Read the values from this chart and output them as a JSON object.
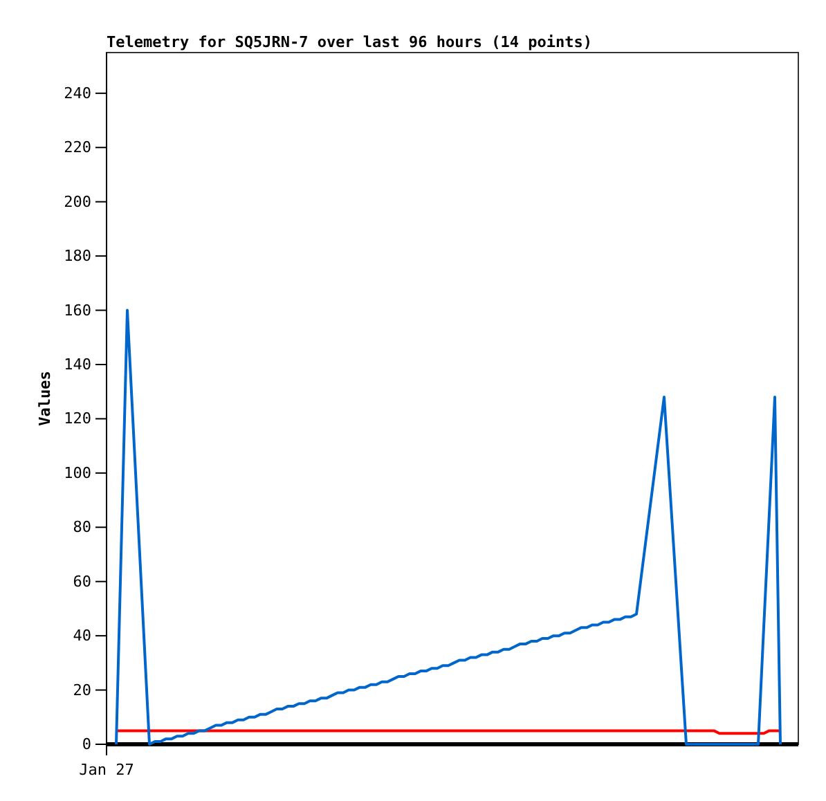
{
  "chart_data": {
    "type": "line",
    "title": "Telemetry for SQ5JRN-7 over last 96 hours (14 points)",
    "ylabel": "Values",
    "annotations": [
      "Jan 27"
    ],
    "categories": [
      null,
      null,
      null,
      null,
      null,
      null,
      null,
      null,
      null,
      null,
      null,
      null,
      null,
      null,
      null,
      null,
      null,
      null,
      null,
      null,
      null,
      null,
      null,
      null,
      null,
      null,
      null,
      null,
      null,
      null,
      null,
      null,
      null,
      null,
      null,
      null,
      null,
      null,
      null,
      null,
      null,
      null,
      null,
      null,
      null,
      null,
      null,
      null,
      null,
      null,
      null,
      null,
      null,
      null,
      null,
      null,
      null,
      null,
      null,
      null,
      null,
      null,
      null,
      null,
      null,
      null,
      null,
      null,
      null,
      null,
      null,
      null,
      null,
      null,
      null,
      null,
      null,
      null,
      null,
      null,
      null,
      null,
      null,
      null,
      null,
      null,
      null,
      null,
      null,
      null,
      null,
      null,
      null,
      null,
      null,
      null,
      null,
      null,
      null,
      null,
      null,
      null,
      null,
      null,
      null,
      null,
      null,
      null,
      null,
      null,
      null,
      null,
      null,
      null,
      null,
      null,
      null,
      null,
      null,
      null,
      null
    ],
    "ylim": [
      0,
      255
    ],
    "yticks": [
      0,
      20,
      40,
      60,
      80,
      100,
      120,
      140,
      160,
      180,
      200,
      220,
      240
    ],
    "grid": false,
    "series": [
      {
        "color": "#ff0000",
        "values": [
          5,
          5,
          5,
          5,
          5,
          5,
          5,
          5,
          5,
          5,
          5,
          5,
          5,
          5,
          5,
          5,
          5,
          5,
          5,
          5,
          5,
          5,
          5,
          5,
          5,
          5,
          5,
          5,
          5,
          5,
          5,
          5,
          5,
          5,
          5,
          5,
          5,
          5,
          5,
          5,
          5,
          5,
          5,
          5,
          5,
          5,
          5,
          5,
          5,
          5,
          5,
          5,
          5,
          5,
          5,
          5,
          5,
          5,
          5,
          5,
          5,
          5,
          5,
          5,
          5,
          5,
          5,
          5,
          5,
          5,
          5,
          5,
          5,
          5,
          5,
          5,
          5,
          5,
          5,
          5,
          5,
          5,
          5,
          5,
          5,
          5,
          5,
          5,
          5,
          5,
          5,
          5,
          5,
          5,
          5,
          5,
          5,
          5,
          5,
          5,
          5,
          5,
          5,
          5,
          5,
          5,
          5,
          5,
          5,
          4,
          4,
          4,
          4,
          4,
          4,
          4,
          4,
          4,
          5,
          5,
          5
        ]
      },
      {
        "color": "#0066cc",
        "values": [
          0,
          80,
          160,
          120,
          80,
          40,
          0,
          1,
          1,
          2,
          2,
          3,
          3,
          4,
          4,
          5,
          5,
          6,
          7,
          7,
          8,
          8,
          9,
          9,
          10,
          10,
          11,
          11,
          12,
          13,
          13,
          14,
          14,
          15,
          15,
          16,
          16,
          17,
          17,
          18,
          19,
          19,
          20,
          20,
          21,
          21,
          22,
          22,
          23,
          23,
          24,
          25,
          25,
          26,
          26,
          27,
          27,
          28,
          28,
          29,
          29,
          30,
          31,
          31,
          32,
          32,
          33,
          33,
          34,
          34,
          35,
          35,
          36,
          37,
          37,
          38,
          38,
          39,
          39,
          40,
          40,
          41,
          41,
          42,
          43,
          43,
          44,
          44,
          45,
          45,
          46,
          46,
          47,
          47,
          48,
          64,
          80,
          96,
          112,
          128,
          96,
          64,
          32,
          0,
          0,
          0,
          0,
          0,
          0,
          0,
          0,
          0,
          0,
          0,
          0,
          0,
          0,
          43,
          85,
          128,
          0
        ]
      }
    ]
  }
}
